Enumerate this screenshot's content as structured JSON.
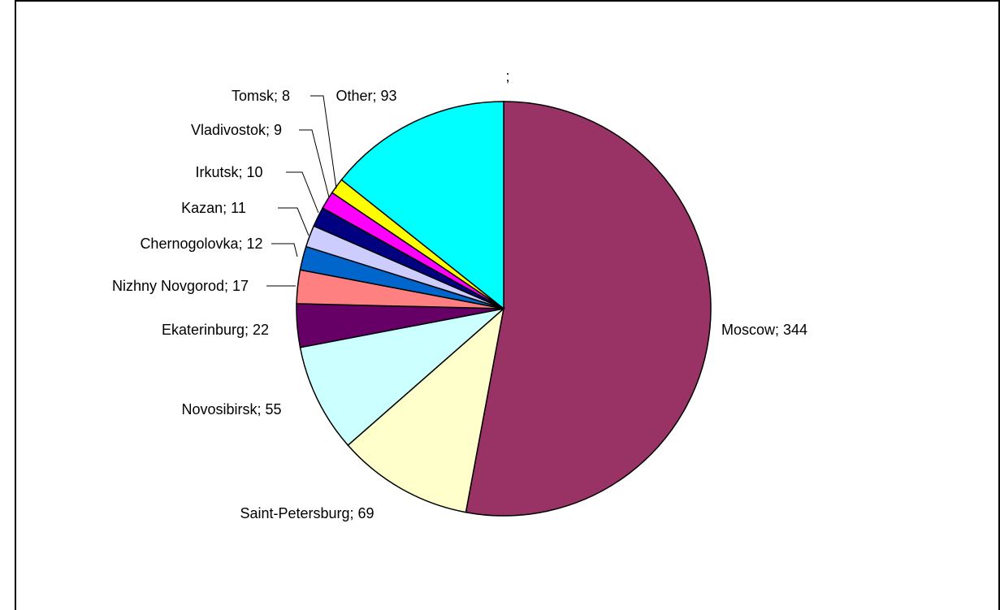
{
  "chart_data": {
    "type": "pie",
    "title": ";",
    "slices": [
      {
        "label": "Moscow; 344",
        "category": "Moscow",
        "value": 344,
        "color": "#993366"
      },
      {
        "label": "Saint-Petersburg; 69",
        "category": "Saint-Petersburg",
        "value": 69,
        "color": "#FFFFCC"
      },
      {
        "label": "Novosibirsk; 55",
        "category": "Novosibirsk",
        "value": 55,
        "color": "#CCFFFF"
      },
      {
        "label": "Ekaterinburg; 22",
        "category": "Ekaterinburg",
        "value": 22,
        "color": "#660066"
      },
      {
        "label": "Nizhny Novgorod; 17",
        "category": "Nizhny Novgorod",
        "value": 17,
        "color": "#FF8080"
      },
      {
        "label": "Chernogolovka; 12",
        "category": "Chernogolovka",
        "value": 12,
        "color": "#0066CC"
      },
      {
        "label": "Kazan; 11",
        "category": "Kazan",
        "value": 11,
        "color": "#CCCCFF"
      },
      {
        "label": "Irkutsk; 10",
        "category": "Irkutsk",
        "value": 10,
        "color": "#000080"
      },
      {
        "label": "Vladivostok; 9",
        "category": "Vladivostok",
        "value": 9,
        "color": "#FF00FF"
      },
      {
        "label": "Tomsk; 8",
        "category": "Tomsk",
        "value": 8,
        "color": "#FFFF00"
      },
      {
        "label": "Other; 93",
        "category": "Other",
        "value": 93,
        "color": "#00FFFF"
      }
    ]
  }
}
